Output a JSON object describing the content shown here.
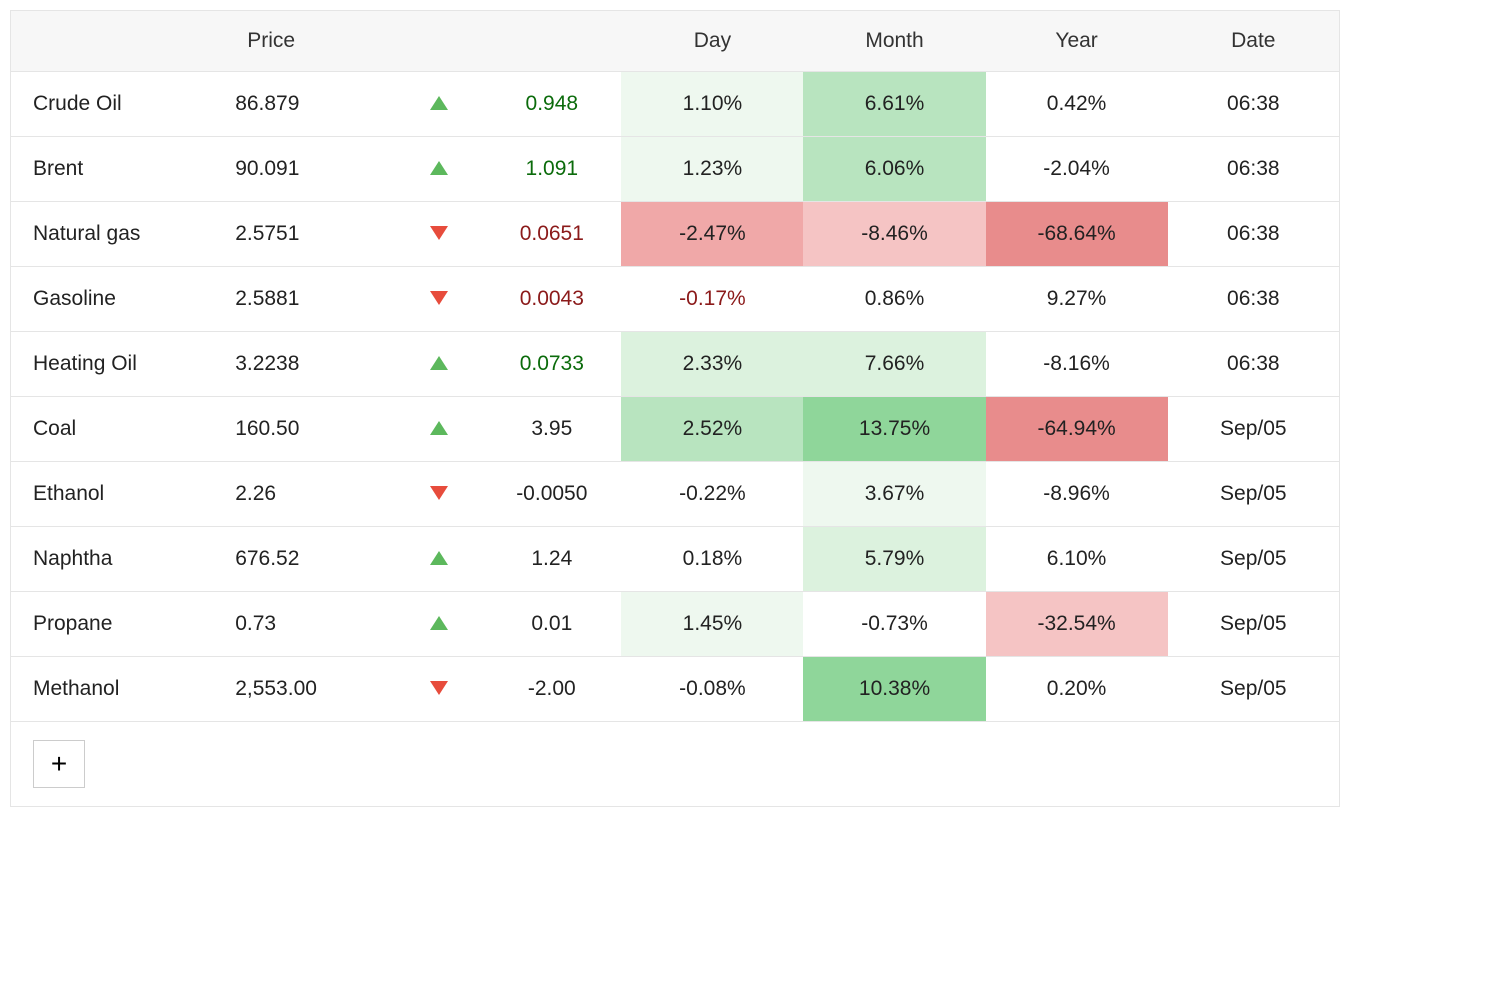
{
  "table": {
    "headers": {
      "name": "",
      "price": "Price",
      "arrow": "",
      "change": "",
      "day": "Day",
      "month": "Month",
      "year": "Year",
      "date": "Date"
    },
    "colors": {
      "header_bg": "#f7f7f7",
      "border": "#e5e5e5",
      "text": "#222222",
      "pos_text": "#0b6b0b",
      "neg_text": "#8b1a1a",
      "arrow_up": "#5cb85c",
      "arrow_down": "#e74c3c"
    },
    "heat_palette": {
      "green_strong": "#8fd69a",
      "green_mid": "#b8e4bf",
      "green_light": "#dcf2de",
      "green_faint": "#eef8ef",
      "red_strong": "#e88c8c",
      "red_mid": "#f0a8a8",
      "red_light": "#f5c4c4",
      "none": "transparent"
    },
    "rows": [
      {
        "name": "Crude Oil",
        "price": "86.879",
        "dir": "up",
        "change": "0.948",
        "change_color": "pos",
        "day": "1.10%",
        "day_bg": "green_faint",
        "month": "6.61%",
        "month_bg": "green_mid",
        "year": "0.42%",
        "year_bg": "none",
        "date": "06:38"
      },
      {
        "name": "Brent",
        "price": "90.091",
        "dir": "up",
        "change": "1.091",
        "change_color": "pos",
        "day": "1.23%",
        "day_bg": "green_faint",
        "month": "6.06%",
        "month_bg": "green_mid",
        "year": "-2.04%",
        "year_bg": "none",
        "date": "06:38"
      },
      {
        "name": "Natural gas",
        "price": "2.5751",
        "dir": "down",
        "change": "0.0651",
        "change_color": "neg",
        "day": "-2.47%",
        "day_bg": "red_mid",
        "month": "-8.46%",
        "month_bg": "red_light",
        "year": "-68.64%",
        "year_bg": "red_strong",
        "date": "06:38"
      },
      {
        "name": "Gasoline",
        "price": "2.5881",
        "dir": "down",
        "change": "0.0043",
        "change_color": "neg",
        "day": "-0.17%",
        "day_bg": "none",
        "day_text": "neg",
        "month": "0.86%",
        "month_bg": "none",
        "year": "9.27%",
        "year_bg": "none",
        "date": "06:38"
      },
      {
        "name": "Heating Oil",
        "price": "3.2238",
        "dir": "up",
        "change": "0.0733",
        "change_color": "pos",
        "day": "2.33%",
        "day_bg": "green_light",
        "month": "7.66%",
        "month_bg": "green_light",
        "year": "-8.16%",
        "year_bg": "none",
        "date": "06:38"
      },
      {
        "name": "Coal",
        "price": "160.50",
        "dir": "up",
        "change": "3.95",
        "change_color": "none",
        "day": "2.52%",
        "day_bg": "green_mid",
        "month": "13.75%",
        "month_bg": "green_strong",
        "year": "-64.94%",
        "year_bg": "red_strong",
        "date": "Sep/05"
      },
      {
        "name": "Ethanol",
        "price": "2.26",
        "dir": "down",
        "change": "-0.0050",
        "change_color": "none",
        "day": "-0.22%",
        "day_bg": "none",
        "month": "3.67%",
        "month_bg": "green_faint",
        "year": "-8.96%",
        "year_bg": "none",
        "date": "Sep/05"
      },
      {
        "name": "Naphtha",
        "price": "676.52",
        "dir": "up",
        "change": "1.24",
        "change_color": "none",
        "day": "0.18%",
        "day_bg": "none",
        "month": "5.79%",
        "month_bg": "green_light",
        "year": "6.10%",
        "year_bg": "none",
        "date": "Sep/05"
      },
      {
        "name": "Propane",
        "price": "0.73",
        "dir": "up",
        "change": "0.01",
        "change_color": "none",
        "day": "1.45%",
        "day_bg": "green_faint",
        "month": "-0.73%",
        "month_bg": "none",
        "year": "-32.54%",
        "year_bg": "red_light",
        "date": "Sep/05"
      },
      {
        "name": "Methanol",
        "price": "2,553.00",
        "dir": "down",
        "change": "-2.00",
        "change_color": "none",
        "day": "-0.08%",
        "day_bg": "none",
        "month": "10.38%",
        "month_bg": "green_strong",
        "year": "0.20%",
        "year_bg": "none",
        "date": "Sep/05"
      }
    ],
    "add_button_label": "+"
  }
}
